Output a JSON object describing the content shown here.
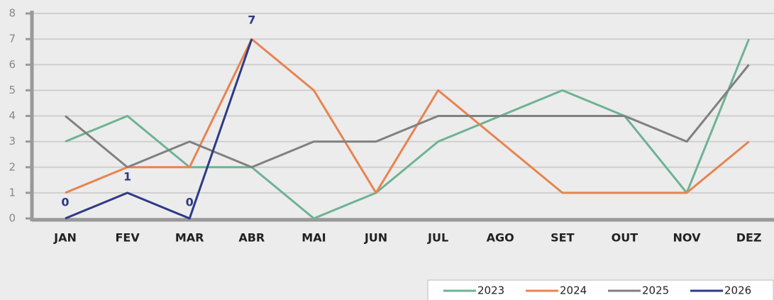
{
  "chart_data": {
    "type": "line",
    "categories": [
      "JAN",
      "FEV",
      "MAR",
      "ABR",
      "MAI",
      "JUN",
      "JUL",
      "AGO",
      "SET",
      "OUT",
      "NOV",
      "DEZ"
    ],
    "series": [
      {
        "name": "2023",
        "color": "#6db393",
        "values": [
          3,
          4,
          2,
          2,
          0,
          1,
          3,
          4,
          5,
          4,
          1,
          7
        ]
      },
      {
        "name": "2024",
        "color": "#e8834f",
        "values": [
          1,
          2,
          2,
          7,
          5,
          1,
          5,
          3,
          1,
          1,
          1,
          3
        ]
      },
      {
        "name": "2025",
        "color": "#808080",
        "values": [
          4,
          2,
          3,
          2,
          3,
          3,
          4,
          4,
          4,
          4,
          3,
          6
        ]
      },
      {
        "name": "2026",
        "color": "#2e3a87",
        "values": [
          0,
          1,
          0,
          7,
          null,
          null,
          null,
          null,
          null,
          null,
          null,
          null
        ],
        "data_labels": true
      }
    ],
    "ylim": [
      0,
      8
    ],
    "yticks": [
      0,
      1,
      2,
      3,
      4,
      5,
      6,
      7,
      8
    ],
    "grid": true,
    "legend": "bottom-right"
  }
}
